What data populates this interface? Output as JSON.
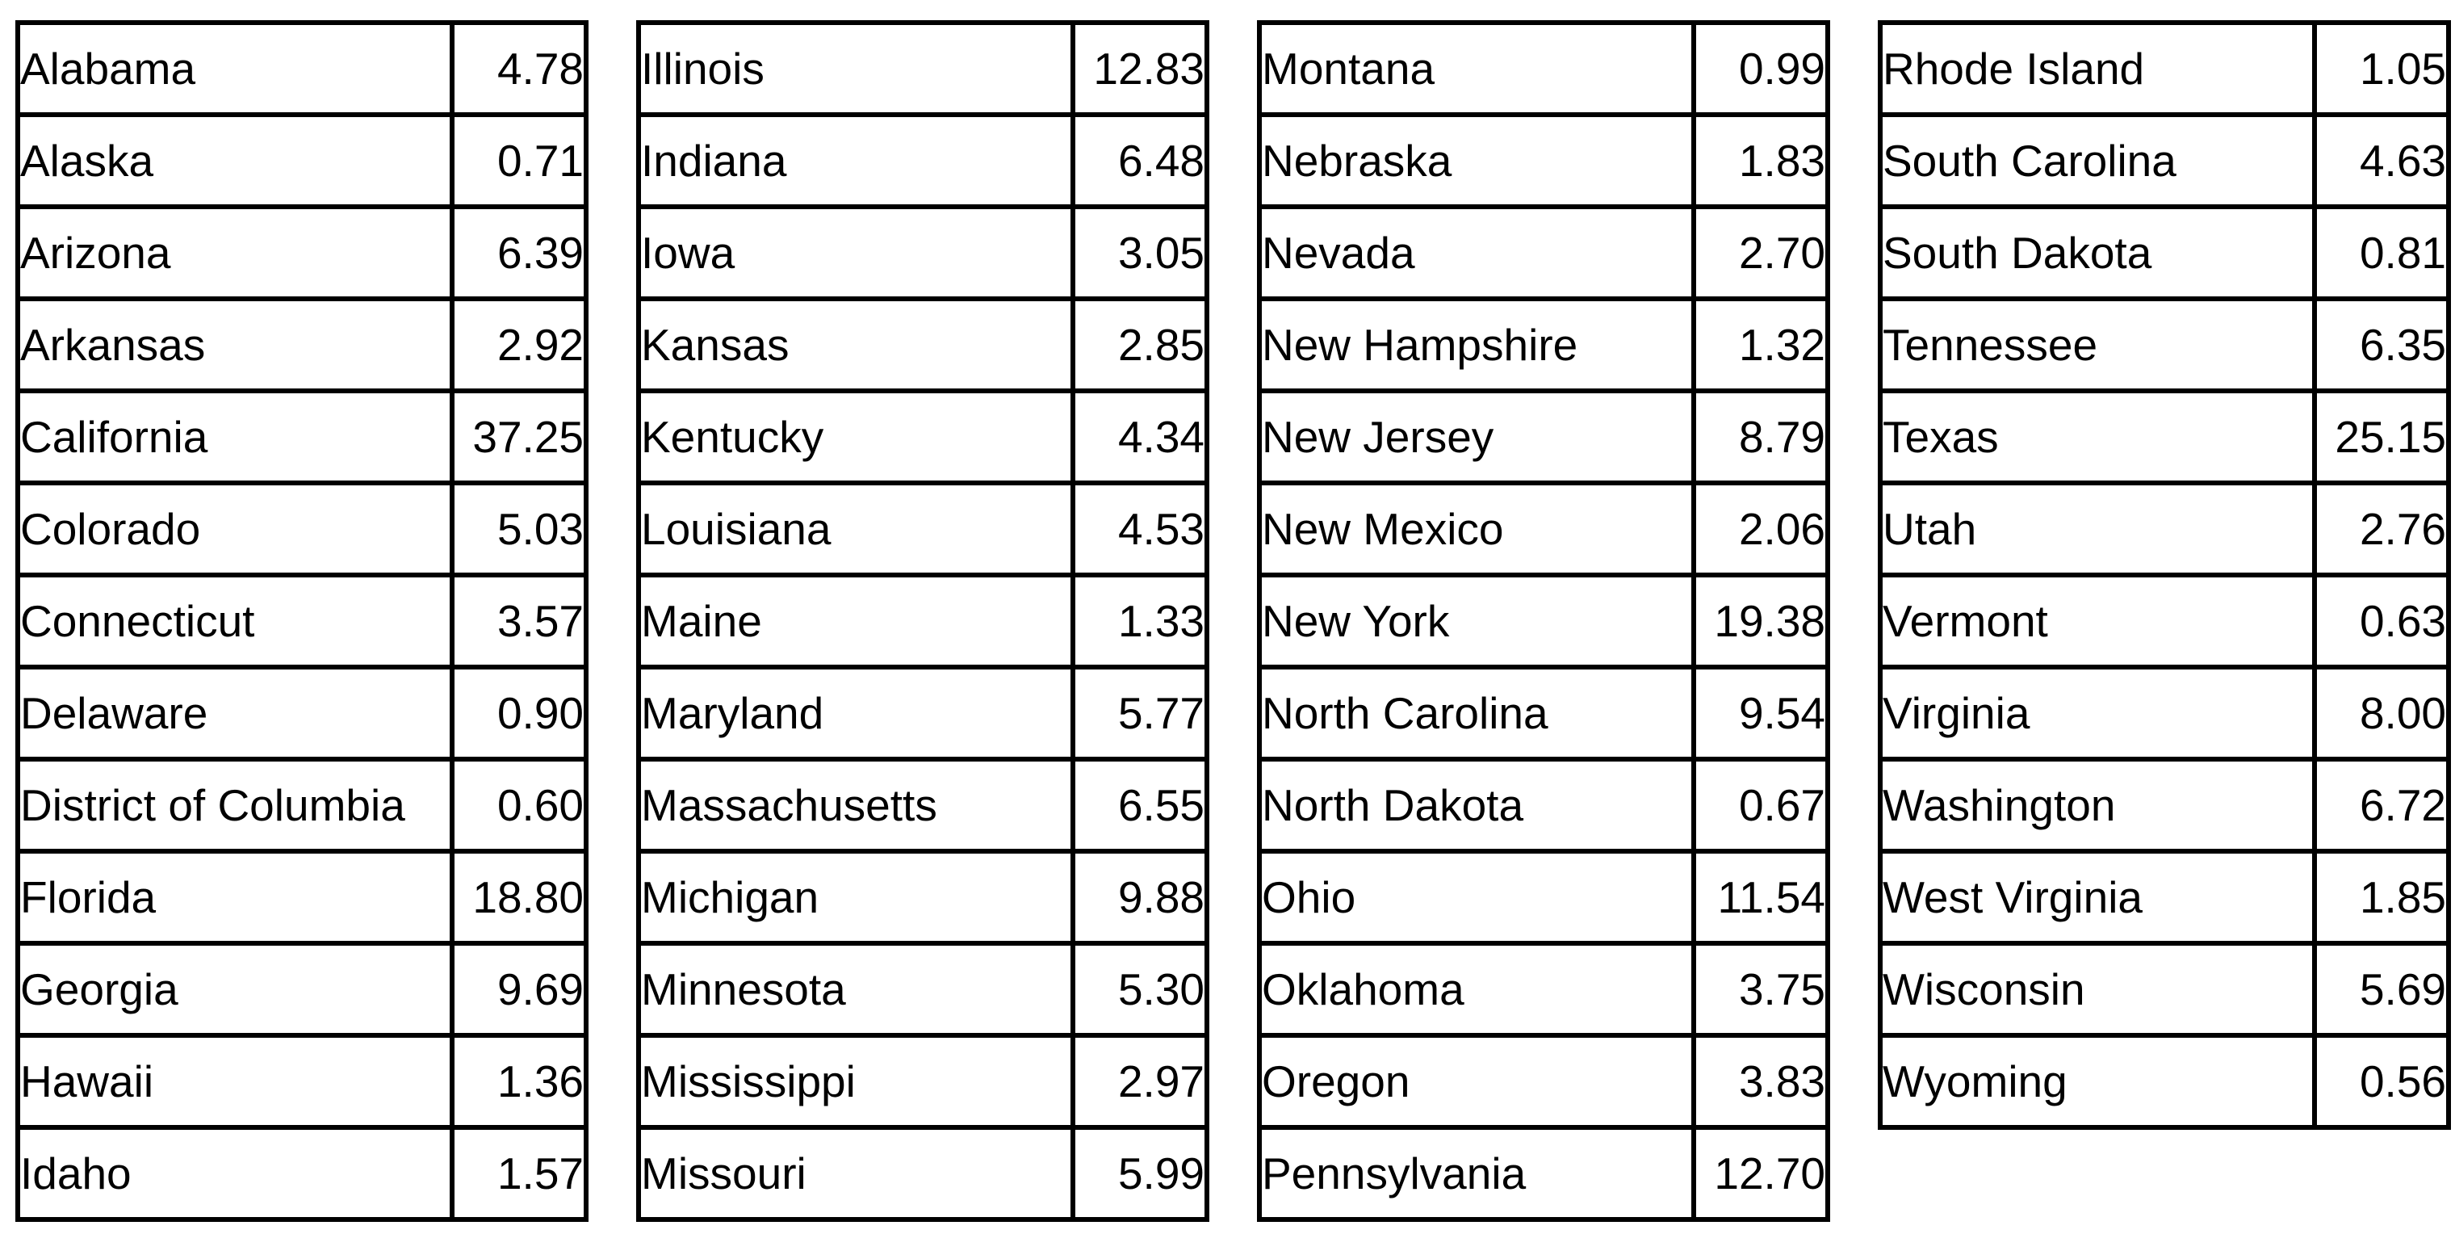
{
  "page": {
    "background_color": "#ffffff",
    "text_color": "#000000",
    "border_color": "#000000"
  },
  "tables": [
    {
      "rows": [
        {
          "state": "Alabama",
          "value": "4.78"
        },
        {
          "state": "Alaska",
          "value": "0.71"
        },
        {
          "state": "Arizona",
          "value": "6.39"
        },
        {
          "state": "Arkansas",
          "value": "2.92"
        },
        {
          "state": "California",
          "value": "37.25"
        },
        {
          "state": "Colorado",
          "value": "5.03"
        },
        {
          "state": "Connecticut",
          "value": "3.57"
        },
        {
          "state": "Delaware",
          "value": "0.90"
        },
        {
          "state": "District of Columbia",
          "value": "0.60"
        },
        {
          "state": "Florida",
          "value": "18.80"
        },
        {
          "state": "Georgia",
          "value": "9.69"
        },
        {
          "state": "Hawaii",
          "value": "1.36"
        },
        {
          "state": "Idaho",
          "value": "1.57"
        }
      ]
    },
    {
      "rows": [
        {
          "state": "Illinois",
          "value": "12.83"
        },
        {
          "state": "Indiana",
          "value": "6.48"
        },
        {
          "state": "Iowa",
          "value": "3.05"
        },
        {
          "state": "Kansas",
          "value": "2.85"
        },
        {
          "state": "Kentucky",
          "value": "4.34"
        },
        {
          "state": "Louisiana",
          "value": "4.53"
        },
        {
          "state": "Maine",
          "value": "1.33"
        },
        {
          "state": "Maryland",
          "value": "5.77"
        },
        {
          "state": "Massachusetts",
          "value": "6.55"
        },
        {
          "state": "Michigan",
          "value": "9.88"
        },
        {
          "state": "Minnesota",
          "value": "5.30"
        },
        {
          "state": "Mississippi",
          "value": "2.97"
        },
        {
          "state": "Missouri",
          "value": "5.99"
        }
      ]
    },
    {
      "rows": [
        {
          "state": "Montana",
          "value": "0.99"
        },
        {
          "state": "Nebraska",
          "value": "1.83"
        },
        {
          "state": "Nevada",
          "value": "2.70"
        },
        {
          "state": "New Hampshire",
          "value": "1.32"
        },
        {
          "state": "New Jersey",
          "value": "8.79"
        },
        {
          "state": "New Mexico",
          "value": "2.06"
        },
        {
          "state": "New York",
          "value": "19.38"
        },
        {
          "state": "North Carolina",
          "value": "9.54"
        },
        {
          "state": "North Dakota",
          "value": "0.67"
        },
        {
          "state": "Ohio",
          "value": "11.54"
        },
        {
          "state": "Oklahoma",
          "value": "3.75"
        },
        {
          "state": "Oregon",
          "value": "3.83"
        },
        {
          "state": "Pennsylvania",
          "value": "12.70"
        }
      ]
    },
    {
      "rows": [
        {
          "state": "Rhode Island",
          "value": "1.05"
        },
        {
          "state": "South Carolina",
          "value": "4.63"
        },
        {
          "state": "South Dakota",
          "value": "0.81"
        },
        {
          "state": "Tennessee",
          "value": "6.35"
        },
        {
          "state": "Texas",
          "value": "25.15"
        },
        {
          "state": "Utah",
          "value": "2.76"
        },
        {
          "state": "Vermont",
          "value": "0.63"
        },
        {
          "state": "Virginia",
          "value": "8.00"
        },
        {
          "state": "Washington",
          "value": "6.72"
        },
        {
          "state": "West Virginia",
          "value": "1.85"
        },
        {
          "state": "Wisconsin",
          "value": "5.69"
        },
        {
          "state": "Wyoming",
          "value": "0.56"
        }
      ]
    }
  ],
  "chart_data": {
    "type": "table",
    "title": "",
    "layout": "four side-by-side two-column tables, no header row, black grid borders on white",
    "categories": [
      "Alabama",
      "Alaska",
      "Arizona",
      "Arkansas",
      "California",
      "Colorado",
      "Connecticut",
      "Delaware",
      "District of Columbia",
      "Florida",
      "Georgia",
      "Hawaii",
      "Idaho",
      "Illinois",
      "Indiana",
      "Iowa",
      "Kansas",
      "Kentucky",
      "Louisiana",
      "Maine",
      "Maryland",
      "Massachusetts",
      "Michigan",
      "Minnesota",
      "Mississippi",
      "Missouri",
      "Montana",
      "Nebraska",
      "Nevada",
      "New Hampshire",
      "New Jersey",
      "New Mexico",
      "New York",
      "North Carolina",
      "North Dakota",
      "Ohio",
      "Oklahoma",
      "Oregon",
      "Pennsylvania",
      "Rhode Island",
      "South Carolina",
      "South Dakota",
      "Tennessee",
      "Texas",
      "Utah",
      "Vermont",
      "Virginia",
      "Washington",
      "West Virginia",
      "Wisconsin",
      "Wyoming"
    ],
    "values": [
      4.78,
      0.71,
      6.39,
      2.92,
      37.25,
      5.03,
      3.57,
      0.9,
      0.6,
      18.8,
      9.69,
      1.36,
      1.57,
      12.83,
      6.48,
      3.05,
      2.85,
      4.34,
      4.53,
      1.33,
      5.77,
      6.55,
      9.88,
      5.3,
      2.97,
      5.99,
      0.99,
      1.83,
      2.7,
      1.32,
      8.79,
      2.06,
      19.38,
      9.54,
      0.67,
      11.54,
      3.75,
      3.83,
      12.7,
      1.05,
      4.63,
      0.81,
      6.35,
      25.15,
      2.76,
      0.63,
      8.0,
      6.72,
      1.85,
      5.69,
      0.56
    ]
  }
}
